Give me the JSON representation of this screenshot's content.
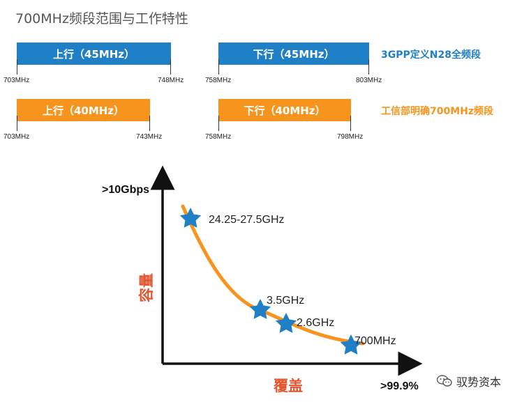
{
  "title": "700MHz频段范围与工作特性",
  "bands": {
    "row1": {
      "label": "3GPP定义N28全频段",
      "label_color": "#1f7fc7",
      "uplink": {
        "text": "上行（45MHz）",
        "start": "703MHz",
        "end": "748MHz"
      },
      "downlink": {
        "text": "下行（45MHz）",
        "start": "758MHz",
        "end": "803MHz"
      }
    },
    "row2": {
      "label": "工信部明确700MHz频段",
      "label_color": "#f7941d",
      "uplink": {
        "text": "上行（40MHz）",
        "start": "703MHz",
        "end": "743MHz"
      },
      "downlink": {
        "text": "下行（40MHz）",
        "start": "758MHz",
        "end": "798MHz"
      }
    }
  },
  "curve": {
    "y_label": ">10Gbps",
    "x_label": ">99.9%",
    "y_axis_cn": "容量",
    "x_axis_cn": "覆盖",
    "curve_color": "#f7941d",
    "star_color": "#1f7fc7",
    "points": [
      {
        "label": "24.25-27.5GHz"
      },
      {
        "label": "3.5GHz"
      },
      {
        "label": "2.6GHz"
      },
      {
        "label": "700MHz"
      }
    ]
  },
  "watermark": {
    "text": "驭势资本",
    "icon": "wechat-icon"
  }
}
